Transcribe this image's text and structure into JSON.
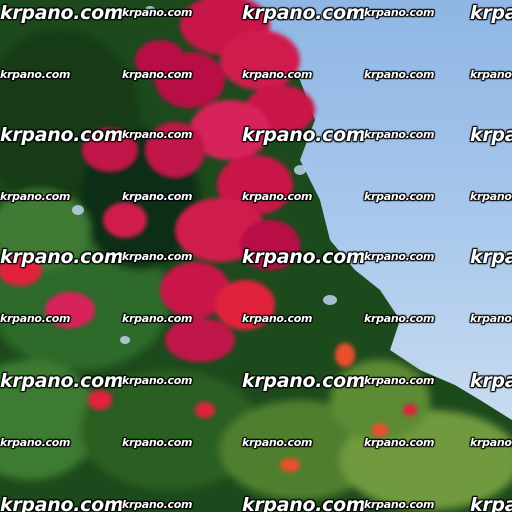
{
  "scene": {
    "description_tag": "bougainvillea-bush-against-sky",
    "colors": {
      "sky_top": "#8fb6e4",
      "sky_bottom": "#d7e3ee",
      "foliage_dark": "#123a16",
      "foliage_mid": "#2f6a2a",
      "foliage_light": "#6f9a3c",
      "bloom_magenta": "#c8124a",
      "bloom_red": "#e0243c",
      "bloom_orange": "#e8502a"
    }
  },
  "watermark": {
    "text": "krpano.com"
  }
}
